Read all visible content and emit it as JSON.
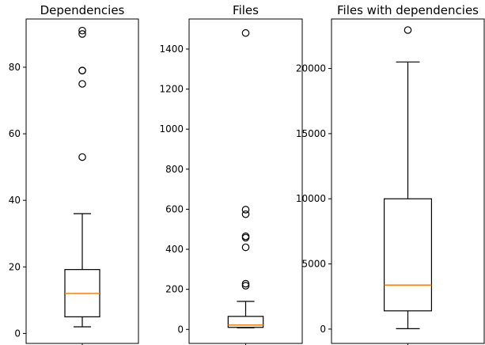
{
  "chart_data": [
    {
      "type": "boxplot",
      "title": "Dependencies",
      "ylim": [
        -3,
        94.5
      ],
      "yticks": [
        0,
        20,
        40,
        60,
        80
      ],
      "tick_labels": [
        "0",
        "20",
        "40",
        "60",
        "80"
      ],
      "box": {
        "whisker_low": 2,
        "q1": 5,
        "median": 12,
        "q3": 19.2,
        "whisker_high": 36
      },
      "outliers": [
        53,
        75,
        79,
        79,
        90,
        91
      ],
      "grid": false
    },
    {
      "type": "boxplot",
      "title": "Files",
      "ylim": [
        -70,
        1550
      ],
      "yticks": [
        0,
        200,
        400,
        600,
        800,
        1000,
        1200,
        1400
      ],
      "tick_labels": [
        "0",
        "200",
        "400",
        "600",
        "800",
        "1000",
        "1200",
        "1400"
      ],
      "box": {
        "whisker_low": 8,
        "q1": 10,
        "median": 22,
        "q3": 65,
        "whisker_high": 140
      },
      "outliers": [
        218,
        228,
        410,
        458,
        465,
        575,
        598,
        1480
      ],
      "grid": false
    },
    {
      "type": "boxplot",
      "title": "Files with dependencies",
      "ylim": [
        -1100,
        23800
      ],
      "yticks": [
        0,
        5000,
        10000,
        15000,
        20000
      ],
      "tick_labels": [
        "0",
        "5000",
        "10000",
        "15000",
        "20000"
      ],
      "box": {
        "whisker_low": 30,
        "q1": 1400,
        "median": 3380,
        "q3": 10000,
        "whisker_high": 20500
      },
      "outliers": [
        22950
      ],
      "grid": false
    }
  ],
  "colors": {
    "median": "#ff7f0e",
    "box": "#000000"
  }
}
